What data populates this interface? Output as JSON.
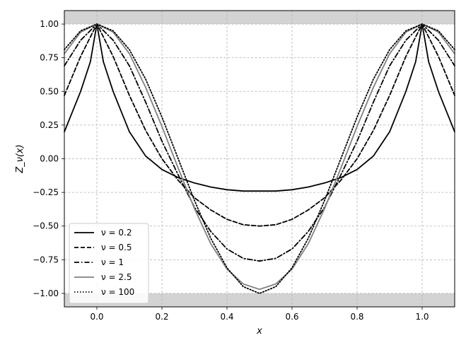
{
  "chart_data": {
    "type": "line",
    "xlabel": "x",
    "ylabel": "Z_ν(x)",
    "xlim": [
      -0.1,
      1.1
    ],
    "ylim": [
      -1.1,
      1.1
    ],
    "xticks": [
      "0.0",
      "0.2",
      "0.4",
      "0.6",
      "0.8",
      "1.0"
    ],
    "yticks": [
      "-1.00",
      "-0.75",
      "-0.50",
      "-0.25",
      "0.00",
      "0.25",
      "0.50",
      "0.75",
      "1.00"
    ],
    "grid": true,
    "legend_position": "lower-left",
    "shaded_bands": [
      {
        "from": 1.0,
        "to": 1.1,
        "color": "#d3d3d3"
      },
      {
        "from": -1.1,
        "to": -1.0,
        "color": "#d3d3d3"
      }
    ],
    "series": [
      {
        "name": "ν = 0.2",
        "style": "solid",
        "color": "#000000",
        "x": [
          -0.1,
          -0.05,
          -0.02,
          0.0,
          0.02,
          0.05,
          0.1,
          0.15,
          0.2,
          0.25,
          0.3,
          0.35,
          0.4,
          0.45,
          0.5,
          0.55,
          0.6,
          0.65,
          0.7,
          0.75,
          0.8,
          0.85,
          0.9,
          0.95,
          0.98,
          1.0,
          1.02,
          1.05,
          1.1
        ],
        "y": [
          0.2,
          0.5,
          0.72,
          1.0,
          0.72,
          0.5,
          0.2,
          0.02,
          -0.08,
          -0.14,
          -0.18,
          -0.21,
          -0.23,
          -0.24,
          -0.24,
          -0.24,
          -0.23,
          -0.21,
          -0.18,
          -0.14,
          -0.08,
          0.02,
          0.2,
          0.5,
          0.72,
          1.0,
          0.72,
          0.5,
          0.2
        ]
      },
      {
        "name": "ν = 0.5",
        "style": "dashed",
        "color": "#000000",
        "x": [
          -0.1,
          -0.05,
          0.0,
          0.05,
          0.1,
          0.15,
          0.2,
          0.25,
          0.3,
          0.35,
          0.4,
          0.45,
          0.5,
          0.55,
          0.6,
          0.65,
          0.7,
          0.75,
          0.8,
          0.85,
          0.9,
          0.95,
          1.0,
          1.05,
          1.1
        ],
        "y": [
          0.47,
          0.76,
          1.0,
          0.76,
          0.47,
          0.21,
          0.0,
          -0.16,
          -0.29,
          -0.38,
          -0.45,
          -0.49,
          -0.5,
          -0.49,
          -0.45,
          -0.38,
          -0.29,
          -0.16,
          0.0,
          0.21,
          0.47,
          0.76,
          1.0,
          0.76,
          0.47
        ]
      },
      {
        "name": "ν = 1",
        "style": "dashdot",
        "color": "#000000",
        "x": [
          -0.1,
          -0.05,
          0.0,
          0.05,
          0.1,
          0.15,
          0.2,
          0.25,
          0.3,
          0.35,
          0.4,
          0.45,
          0.5,
          0.55,
          0.6,
          0.65,
          0.7,
          0.75,
          0.8,
          0.85,
          0.9,
          0.95,
          1.0,
          1.05,
          1.1
        ],
        "y": [
          0.69,
          0.88,
          1.0,
          0.88,
          0.69,
          0.42,
          0.13,
          -0.12,
          -0.36,
          -0.54,
          -0.67,
          -0.74,
          -0.76,
          -0.74,
          -0.67,
          -0.54,
          -0.36,
          -0.12,
          0.13,
          0.42,
          0.69,
          0.88,
          1.0,
          0.88,
          0.69
        ]
      },
      {
        "name": "ν = 2.5",
        "style": "solid",
        "color": "#808080",
        "x": [
          -0.1,
          -0.05,
          0.0,
          0.05,
          0.1,
          0.15,
          0.2,
          0.25,
          0.3,
          0.35,
          0.4,
          0.45,
          0.5,
          0.55,
          0.6,
          0.65,
          0.7,
          0.75,
          0.8,
          0.85,
          0.9,
          0.95,
          1.0,
          1.05,
          1.1
        ],
        "y": [
          0.78,
          0.94,
          1.0,
          0.94,
          0.78,
          0.53,
          0.24,
          -0.07,
          -0.37,
          -0.63,
          -0.82,
          -0.93,
          -0.97,
          -0.93,
          -0.82,
          -0.63,
          -0.37,
          -0.07,
          0.24,
          0.53,
          0.78,
          0.94,
          1.0,
          0.94,
          0.78
        ]
      },
      {
        "name": "ν = 100",
        "style": "dotted",
        "color": "#000000",
        "x": [
          -0.1,
          -0.05,
          0.0,
          0.05,
          0.1,
          0.15,
          0.2,
          0.25,
          0.3,
          0.35,
          0.4,
          0.45,
          0.5,
          0.55,
          0.6,
          0.65,
          0.7,
          0.75,
          0.8,
          0.85,
          0.9,
          0.95,
          1.0,
          1.05,
          1.1
        ],
        "y": [
          0.81,
          0.95,
          1.0,
          0.95,
          0.81,
          0.59,
          0.31,
          0.0,
          -0.31,
          -0.59,
          -0.81,
          -0.95,
          -1.0,
          -0.95,
          -0.81,
          -0.59,
          -0.31,
          0.0,
          0.31,
          0.59,
          0.81,
          0.95,
          1.0,
          0.95,
          0.81
        ]
      }
    ]
  }
}
